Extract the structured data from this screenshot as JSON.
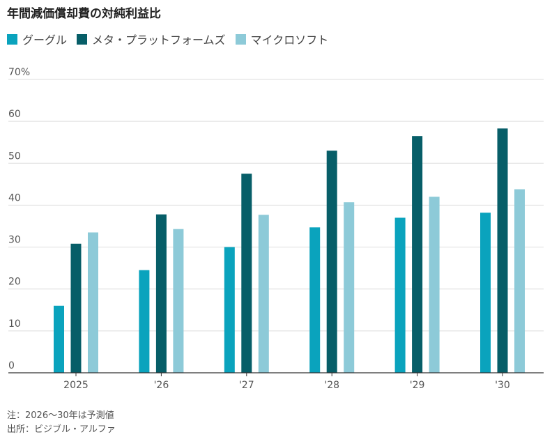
{
  "title": "年間減価償却費の対純利益比",
  "colors": {
    "google": "#0aa3bd",
    "meta": "#075e68",
    "microsoft": "#8dcad8"
  },
  "legend": [
    {
      "label": "グーグル",
      "color": "#0aa3bd"
    },
    {
      "label": "メタ・プラットフォームズ",
      "color": "#075e68"
    },
    {
      "label": "マイクロソフト",
      "color": "#8dcad8"
    }
  ],
  "chart_data": {
    "type": "bar",
    "title": "年間減価償却費の対純利益比",
    "categories": [
      "2025",
      "'26",
      "'27",
      "'28",
      "'29",
      "'30"
    ],
    "y_tick_labels": [
      "0",
      "10",
      "20",
      "30",
      "40",
      "50",
      "60",
      "70%"
    ],
    "y_ticks": [
      0,
      10,
      20,
      30,
      40,
      50,
      60,
      70
    ],
    "ylim": [
      0,
      70
    ],
    "grid": true,
    "legend_position": "top-left",
    "series": [
      {
        "name": "グーグル",
        "color": "#0aa3bd",
        "values": [
          16,
          24.5,
          30,
          34.7,
          37,
          38.2
        ]
      },
      {
        "name": "メタ・プラットフォームズ",
        "color": "#075e68",
        "values": [
          30.8,
          37.8,
          47.5,
          53,
          56.5,
          58.3
        ]
      },
      {
        "name": "マイクロソフト",
        "color": "#8dcad8",
        "values": [
          33.5,
          34.3,
          37.7,
          40.7,
          42,
          43.8
        ]
      }
    ]
  },
  "notes": {
    "note": "注：2026～30年は予測値",
    "source": "出所：ビジブル・アルファ"
  }
}
